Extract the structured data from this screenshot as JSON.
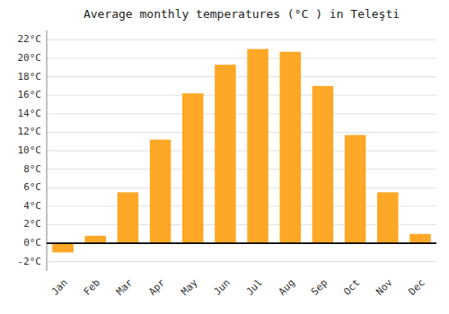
{
  "chart_data": {
    "type": "bar",
    "title": "Average monthly temperatures (°C ) in Teleşti",
    "categories": [
      "Jan",
      "Feb",
      "Mar",
      "Apr",
      "May",
      "Jun",
      "Jul",
      "Aug",
      "Sep",
      "Oct",
      "Nov",
      "Dec"
    ],
    "values": [
      -1.0,
      0.8,
      5.5,
      11.2,
      16.2,
      19.3,
      21.0,
      20.7,
      17.0,
      11.7,
      5.5,
      1.0
    ],
    "color": "#FFA726",
    "ylim": [
      -3,
      23
    ],
    "yticks": [
      {
        "value": -2,
        "label": "-2°C"
      },
      {
        "value": 0,
        "label": "0°C"
      },
      {
        "value": 2,
        "label": "2°C"
      },
      {
        "value": 4,
        "label": "4°C"
      },
      {
        "value": 6,
        "label": "6°C"
      },
      {
        "value": 8,
        "label": "8°C"
      },
      {
        "value": 10,
        "label": "10°C"
      },
      {
        "value": 12,
        "label": "12°C"
      },
      {
        "value": 14,
        "label": "14°C"
      },
      {
        "value": 16,
        "label": "16°C"
      },
      {
        "value": 18,
        "label": "18°C"
      },
      {
        "value": 20,
        "label": "20°C"
      },
      {
        "value": 22,
        "label": "22°C"
      }
    ],
    "grid": true
  }
}
